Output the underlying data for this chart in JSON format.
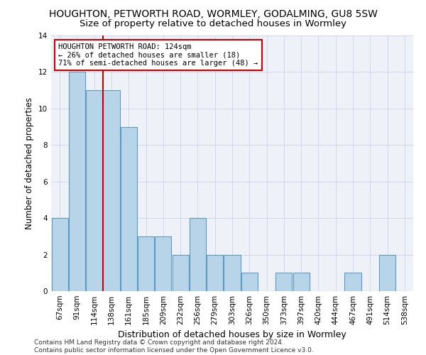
{
  "title": "HOUGHTON, PETWORTH ROAD, WORMLEY, GODALMING, GU8 5SW",
  "subtitle": "Size of property relative to detached houses in Wormley",
  "xlabel": "Distribution of detached houses by size in Wormley",
  "ylabel": "Number of detached properties",
  "categories": [
    "67sqm",
    "91sqm",
    "114sqm",
    "138sqm",
    "161sqm",
    "185sqm",
    "209sqm",
    "232sqm",
    "256sqm",
    "279sqm",
    "303sqm",
    "326sqm",
    "350sqm",
    "373sqm",
    "397sqm",
    "420sqm",
    "444sqm",
    "467sqm",
    "491sqm",
    "514sqm",
    "538sqm"
  ],
  "values": [
    4,
    12,
    11,
    11,
    9,
    3,
    3,
    2,
    4,
    2,
    2,
    1,
    0,
    1,
    1,
    0,
    0,
    1,
    0,
    2,
    0
  ],
  "bar_color": "#b8d4e8",
  "bar_edge_color": "#5a9ac5",
  "vline_x_index": 2.5,
  "vline_color": "#cc0000",
  "annotation_text": "HOUGHTON PETWORTH ROAD: 124sqm\n← 26% of detached houses are smaller (18)\n71% of semi-detached houses are larger (48) →",
  "annotation_box_color": "#ffffff",
  "annotation_box_edge": "#cc0000",
  "ylim": [
    0,
    14
  ],
  "yticks": [
    0,
    2,
    4,
    6,
    8,
    10,
    12,
    14
  ],
  "grid_color": "#d0d8e8",
  "bg_color": "#eef2f8",
  "footer": "Contains HM Land Registry data © Crown copyright and database right 2024.\nContains public sector information licensed under the Open Government Licence v3.0.",
  "title_fontsize": 10,
  "subtitle_fontsize": 9.5,
  "xlabel_fontsize": 9,
  "ylabel_fontsize": 8.5,
  "tick_fontsize": 7.5,
  "annotation_fontsize": 7.5,
  "footer_fontsize": 6.5
}
